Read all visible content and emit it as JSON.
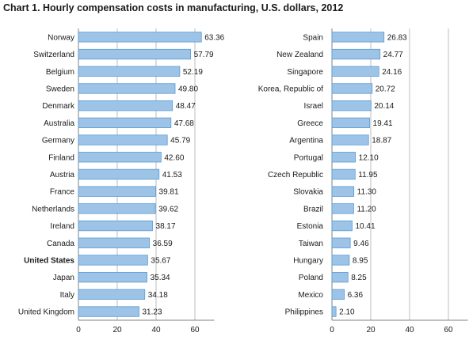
{
  "title": "Chart 1. Hourly compensation costs in manufacturing, U.S. dollars, 2012",
  "chart_data": [
    {
      "type": "bar",
      "orientation": "horizontal",
      "panel": "left",
      "title": "Chart 1. Hourly compensation costs in manufacturing, U.S. dollars, 2012",
      "categories": [
        "Norway",
        "Switzerland",
        "Belgium",
        "Sweden",
        "Denmark",
        "Australia",
        "Germany",
        "Finland",
        "Austria",
        "France",
        "Netherlands",
        "Ireland",
        "Canada",
        "United States",
        "Japan",
        "Italy",
        "United Kingdom"
      ],
      "values": [
        63.36,
        57.79,
        52.19,
        49.8,
        48.47,
        47.68,
        45.79,
        42.6,
        41.53,
        39.81,
        39.62,
        38.17,
        36.59,
        35.67,
        35.34,
        34.18,
        31.23
      ],
      "value_labels": [
        "63.36",
        "57.79",
        "52.19",
        "49.80",
        "48.47",
        "47.68",
        "45.79",
        "42.60",
        "41.53",
        "39.81",
        "39.62",
        "38.17",
        "36.59",
        "35.67",
        "35.34",
        "34.18",
        "31.23"
      ],
      "highlight": [
        "United States"
      ],
      "xlim": [
        0,
        70
      ],
      "xticks": [
        "0",
        "20",
        "40",
        "60"
      ],
      "xlabel": "",
      "ylabel": "",
      "grid": "vertical",
      "bar_color": "#9dc3e6",
      "bar_border": "#5b9bd5"
    },
    {
      "type": "bar",
      "orientation": "horizontal",
      "panel": "right",
      "categories": [
        "Spain",
        "New Zealand",
        "Singapore",
        "Korea, Republic of",
        "Israel",
        "Greece",
        "Argentina",
        "Portugal",
        "Czech Republic",
        "Slovakia",
        "Brazil",
        "Estonia",
        "Taiwan",
        "Hungary",
        "Poland",
        "Mexico",
        "Philippines"
      ],
      "values": [
        26.83,
        24.77,
        24.16,
        20.72,
        20.14,
        19.41,
        18.87,
        12.1,
        11.95,
        11.3,
        11.2,
        10.41,
        9.46,
        8.95,
        8.25,
        6.36,
        2.1
      ],
      "value_labels": [
        "26.83",
        "24.77",
        "24.16",
        "20.72",
        "20.14",
        "19.41",
        "18.87",
        "12.10",
        "11.95",
        "11.30",
        "11.20",
        "10.41",
        "9.46",
        "8.95",
        "8.25",
        "6.36",
        "2.10"
      ],
      "highlight": [],
      "xlim": [
        0,
        70
      ],
      "xticks": [
        "0",
        "20",
        "40",
        "60"
      ],
      "xlabel": "",
      "ylabel": "",
      "grid": "vertical",
      "bar_color": "#9dc3e6",
      "bar_border": "#5b9bd5"
    }
  ]
}
